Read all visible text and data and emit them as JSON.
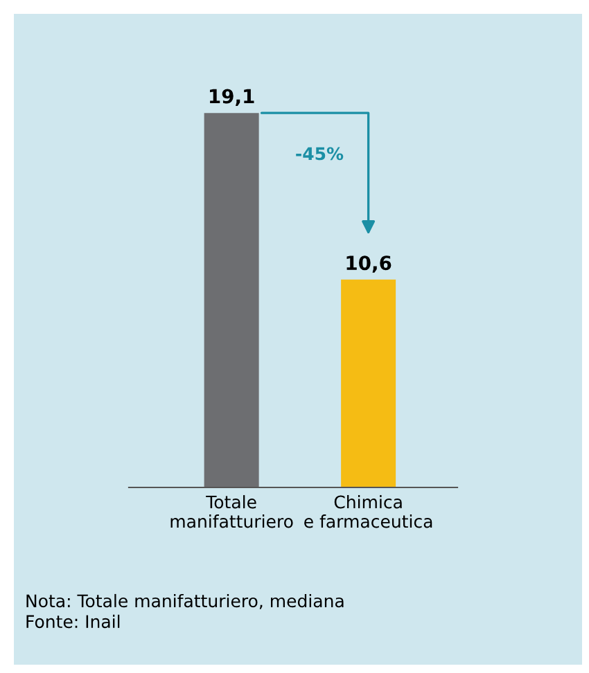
{
  "chart_data": {
    "type": "bar",
    "categories": [
      "Totale\nmanifatturiero",
      "Chimica\ne farmaceutica"
    ],
    "values": [
      19.1,
      10.6
    ],
    "colors": [
      "#6d6e71",
      "#f5bc14"
    ],
    "value_labels": [
      "19,1",
      "10,6"
    ],
    "annotations": [
      "-45%",
      "Nota: Totale manifatturiero, mediana\nFonte: Inail"
    ],
    "grid": false
  }
}
